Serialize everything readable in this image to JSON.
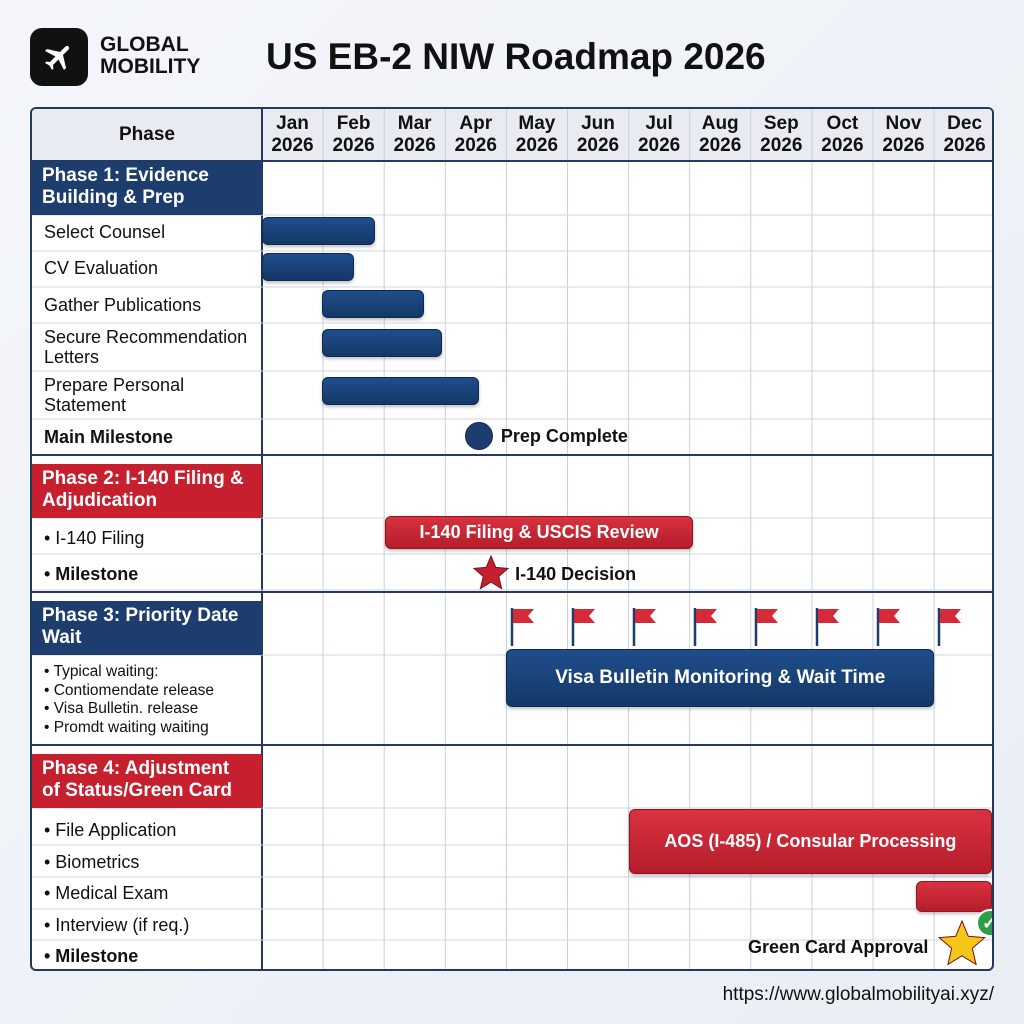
{
  "brand": {
    "line1": "GLOBAL",
    "line2": "MOBILITY",
    "logo_icon": "airplane-icon"
  },
  "title": "US EB-2 NIW Roadmap 2026",
  "url": "https://www.globalmobilityai.xyz/",
  "colors": {
    "navy": "#1d3d6e",
    "red": "#c6202f",
    "bar_blue": "#1f4d8c",
    "milestone_star": "#c6202f",
    "final_star": "#f5c518",
    "check": "#2e9e44"
  },
  "chart_data": {
    "type": "gantt",
    "header_label": "Phase",
    "months": [
      {
        "m": "Jan",
        "y": "2026"
      },
      {
        "m": "Feb",
        "y": "2026"
      },
      {
        "m": "Mar",
        "y": "2026"
      },
      {
        "m": "Apr",
        "y": "2026"
      },
      {
        "m": "May",
        "y": "2026"
      },
      {
        "m": "Jun",
        "y": "2026"
      },
      {
        "m": "Jul",
        "y": "2026"
      },
      {
        "m": "Aug",
        "y": "2026"
      },
      {
        "m": "Sep",
        "y": "2026"
      },
      {
        "m": "Oct",
        "y": "2026"
      },
      {
        "m": "Nov",
        "y": "2026"
      },
      {
        "m": "Dec",
        "y": "2026"
      }
    ],
    "phase1": {
      "title": "Phase 1: Evidence Building & Prep",
      "tasks": [
        {
          "name": "Select Counsel",
          "start": 1.0,
          "end": 2.85
        },
        {
          "name": "CV Evaluation",
          "start": 1.0,
          "end": 2.5
        },
        {
          "name": "Gather Publications",
          "start": 1.98,
          "end": 3.65
        },
        {
          "name": "Secure Recommendation Letters",
          "start": 1.98,
          "end": 3.95
        },
        {
          "name": "Prepare Personal Statement",
          "start": 1.98,
          "end": 4.55
        }
      ],
      "milestone": {
        "label": "Main Milestone",
        "text": "Prep Complete",
        "at": 4.55
      }
    },
    "phase2": {
      "title": "Phase 2: I-140 Filing & Adjudication",
      "tasks": [
        {
          "name": "• I-140 Filing",
          "start": 3.02,
          "end": 8.05,
          "bar_text": "I-140 Filing & USCIS Review"
        }
      ],
      "milestone": {
        "label": "• Milestone",
        "text": "I-140 Decision",
        "at": 4.75
      }
    },
    "phase3": {
      "title": "Phase 3: Priority Date Wait",
      "notes": [
        "• Typical waiting:",
        "• Contiomendate release",
        "• Visa Bulletin. release",
        "• Promdt waiting waiting"
      ],
      "task": {
        "start": 5.0,
        "end": 12.0,
        "bar_text": "Visa Bulletin Monitoring & Wait Time"
      },
      "flags_at": [
        5.1,
        6.1,
        7.1,
        8.1,
        9.1,
        10.1,
        11.1,
        12.1
      ]
    },
    "phase4": {
      "title": "Phase 4: Adjustment of Status/Green Card",
      "tasks": [
        {
          "name": "• File Application"
        },
        {
          "name": "• Biometrics"
        },
        {
          "name": "• Medical Exam"
        },
        {
          "name": "• Interview (if req.)"
        }
      ],
      "bar1": {
        "start": 7.0,
        "end": 12.95,
        "bar_text": "AOS (I-485) / Consular Processing"
      },
      "bar2": {
        "start": 11.7,
        "end": 12.95
      },
      "milestone": {
        "label": "• Milestone",
        "text": "Green Card Approval",
        "at": 12.45
      }
    }
  }
}
